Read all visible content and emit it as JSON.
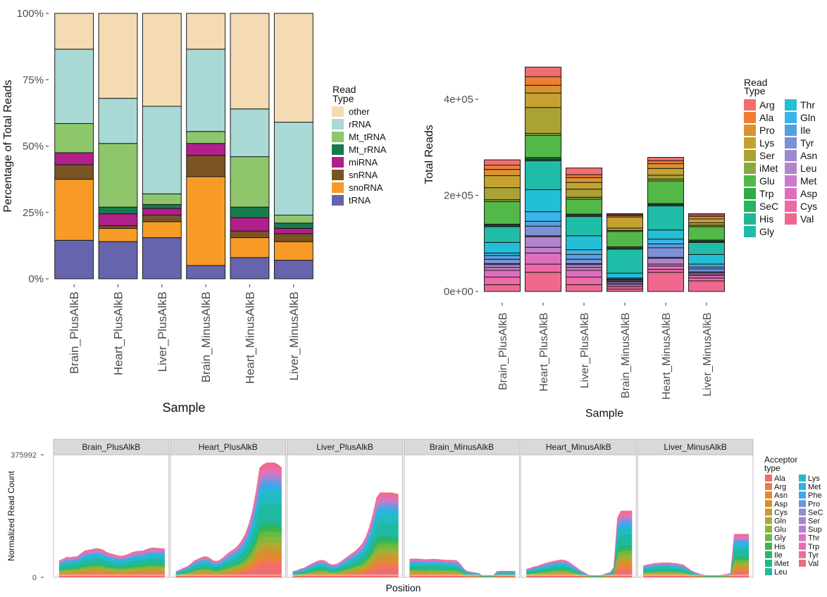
{
  "chart_data": [
    {
      "type": "bar",
      "stacked": true,
      "xlabel": "Sample",
      "ylabel": "Percentage of Total Reads",
      "ylim": [
        0,
        100
      ],
      "yticks": [
        "0%",
        "25%",
        "50%",
        "75%",
        "100%"
      ],
      "categories": [
        "Brain_PlusAlkB",
        "Heart_PlusAlkB",
        "Liver_PlusAlkB",
        "Brain_MinusAlkB",
        "Heart_MinusAlkB",
        "Liver_MinusAlkB"
      ],
      "legend_title": "Read Type",
      "legend_position": "right",
      "series": [
        {
          "name": "tRNA",
          "color": "#6664ac",
          "values": [
            14.5,
            14.0,
            15.5,
            5.0,
            8.0,
            7.0
          ]
        },
        {
          "name": "snoRNA",
          "color": "#f89b26",
          "values": [
            23.0,
            5.0,
            6.0,
            33.5,
            7.5,
            7.0
          ]
        },
        {
          "name": "snRNA",
          "color": "#7a5423",
          "values": [
            5.5,
            1.0,
            2.5,
            8.0,
            2.5,
            3.0
          ]
        },
        {
          "name": "miRNA",
          "color": "#b11f8a",
          "values": [
            4.5,
            4.5,
            2.5,
            4.5,
            5.0,
            2.0
          ]
        },
        {
          "name": "Mt_rRNA",
          "color": "#177a4d",
          "values": [
            0.0,
            2.5,
            1.5,
            0.0,
            4.0,
            2.0
          ]
        },
        {
          "name": "Mt_tRNA",
          "color": "#8ec66c",
          "values": [
            11.0,
            24.0,
            4.0,
            4.5,
            19.0,
            3.0
          ]
        },
        {
          "name": "rRNA",
          "color": "#a8d9d5",
          "values": [
            28.0,
            17.0,
            33.0,
            31.0,
            18.0,
            35.0
          ]
        },
        {
          "name": "other",
          "color": "#f4dbb3",
          "values": [
            13.5,
            32.0,
            35.0,
            13.5,
            36.0,
            41.0
          ]
        }
      ]
    },
    {
      "type": "bar",
      "stacked": true,
      "xlabel": "Sample",
      "ylabel": "Total Reads",
      "ylim": [
        0,
        570000
      ],
      "yticks": [
        {
          "value": 0,
          "label": "0e+00"
        },
        {
          "value": 200000,
          "label": "2e+05"
        },
        {
          "value": 400000,
          "label": "4e+05"
        }
      ],
      "categories": [
        "Brain_PlusAlkB",
        "Heart_PlusAlkB",
        "Liver_PlusAlkB",
        "Brain_MinusAlkB",
        "Heart_MinusAlkB",
        "Liver_MinusAlkB"
      ],
      "legend_title": "Read Type",
      "legend_position": "right",
      "series": [
        {
          "name": "Val",
          "color": "#f0688e",
          "values": [
            14000,
            40000,
            14000,
            5000,
            40000,
            22000
          ]
        },
        {
          "name": "Cys",
          "color": "#ee6aa6",
          "values": [
            16000,
            17000,
            16000,
            5000,
            6000,
            6000
          ]
        },
        {
          "name": "Asp",
          "color": "#de6fbd",
          "values": [
            14000,
            23000,
            14000,
            4000,
            7000,
            5000
          ]
        },
        {
          "name": "Met",
          "color": "#c87ccb",
          "values": [
            6000,
            12000,
            6000,
            3000,
            4000,
            3000
          ]
        },
        {
          "name": "Leu",
          "color": "#b184cc",
          "values": [
            6000,
            22000,
            6000,
            3000,
            12000,
            3000
          ]
        },
        {
          "name": "Asn",
          "color": "#9a8ace",
          "values": [
            2000,
            2000,
            2000,
            2000,
            2000,
            2000
          ]
        },
        {
          "name": "Tyr",
          "color": "#7d92d6",
          "values": [
            9000,
            20000,
            9000,
            2000,
            20000,
            6000
          ]
        },
        {
          "name": "Ile",
          "color": "#54a0e0",
          "values": [
            8000,
            10000,
            10000,
            2000,
            8000,
            4000
          ]
        },
        {
          "name": "Gln",
          "color": "#3ab3e8",
          "values": [
            5000,
            20000,
            10000,
            2000,
            10000,
            6000
          ]
        },
        {
          "name": "Thr",
          "color": "#23bfd6",
          "values": [
            22000,
            46000,
            29000,
            10000,
            19000,
            20000
          ]
        },
        {
          "name": "Gly",
          "color": "#1fbda8",
          "values": [
            33000,
            60000,
            40000,
            50000,
            50000,
            25000
          ]
        },
        {
          "name": "His",
          "color": "#21b793",
          "values": [
            1000,
            2000,
            1000,
            1000,
            1000,
            1000
          ]
        },
        {
          "name": "SeC",
          "color": "#27b55f",
          "values": [
            2000,
            2000,
            2000,
            2000,
            2000,
            2000
          ]
        },
        {
          "name": "Trp",
          "color": "#30ab45",
          "values": [
            2000,
            3000,
            2000,
            2000,
            2000,
            2000
          ]
        },
        {
          "name": "Glu",
          "color": "#52b848",
          "values": [
            47000,
            46000,
            31000,
            32000,
            47000,
            28000
          ]
        },
        {
          "name": "iMet",
          "color": "#8aa93c",
          "values": [
            4000,
            4000,
            4000,
            2000,
            4000,
            3000
          ]
        },
        {
          "name": "Ser",
          "color": "#aaa235",
          "values": [
            25000,
            54000,
            17000,
            5000,
            8000,
            5000
          ]
        },
        {
          "name": "Lys",
          "color": "#c5a22f",
          "values": [
            25000,
            30000,
            14000,
            23000,
            14000,
            8000
          ]
        },
        {
          "name": "Pro",
          "color": "#d9932f",
          "values": [
            13000,
            16000,
            10000,
            3000,
            10000,
            5000
          ]
        },
        {
          "name": "Ala",
          "color": "#ef7e34",
          "values": [
            9000,
            18000,
            6000,
            2000,
            6000,
            3000
          ]
        },
        {
          "name": "Arg",
          "color": "#f26d6d",
          "values": [
            11000,
            20000,
            14000,
            2000,
            7000,
            3000
          ]
        }
      ]
    },
    {
      "type": "area",
      "stacked": true,
      "faceted": true,
      "xlabel": "Position",
      "ylabel": "Normalized Read Count",
      "ylim": [
        0,
        375992
      ],
      "yticks": [
        {
          "value": 0,
          "label": "0"
        },
        {
          "value": 375992,
          "label": "375992"
        }
      ],
      "panels": [
        "Brain_PlusAlkB",
        "Heart_PlusAlkB",
        "Liver_PlusAlkB",
        "Brain_MinusAlkB",
        "Heart_MinusAlkB",
        "Liver_MinusAlkB"
      ],
      "panel_totals": [
        [
          50000,
          55000,
          61000,
          60000,
          62000,
          63000,
          72000,
          80000,
          82000,
          84000,
          87000,
          86000,
          83000,
          76000,
          72000,
          69000,
          66000,
          64000,
          66000,
          70000,
          75000,
          78000,
          79000,
          80000,
          84000,
          88000,
          89000,
          88000,
          87000,
          86000
        ],
        [
          18000,
          22000,
          28000,
          32000,
          40000,
          50000,
          55000,
          60000,
          63000,
          60000,
          52000,
          48000,
          52000,
          60000,
          70000,
          78000,
          85000,
          95000,
          110000,
          130000,
          160000,
          200000,
          260000,
          330000,
          340000,
          345000,
          345000,
          345000,
          340000,
          330000
        ],
        [
          18000,
          20000,
          25000,
          28000,
          34000,
          40000,
          45000,
          50000,
          52000,
          49000,
          41000,
          38000,
          40000,
          46000,
          54000,
          62000,
          70000,
          78000,
          88000,
          100000,
          120000,
          150000,
          190000,
          240000,
          255000,
          255000,
          255000,
          255000,
          253000,
          250000
        ],
        [
          55000,
          56000,
          56000,
          55000,
          54000,
          54000,
          55000,
          55000,
          54000,
          53000,
          52000,
          52000,
          52000,
          50000,
          40000,
          25000,
          18000,
          16000,
          14000,
          12000,
          6000,
          5000,
          6000,
          6000,
          18000,
          19000,
          19000,
          19000,
          19000,
          18000
        ],
        [
          25000,
          28000,
          32000,
          34000,
          38000,
          42000,
          45000,
          48000,
          50000,
          52000,
          53000,
          50000,
          44000,
          36000,
          28000,
          20000,
          14000,
          8000,
          6000,
          5000,
          6000,
          8000,
          12000,
          15000,
          30000,
          180000,
          200000,
          200000,
          200000,
          200000
        ],
        [
          35000,
          38000,
          40000,
          42000,
          43000,
          44000,
          44000,
          44000,
          43000,
          42000,
          40000,
          38000,
          30000,
          22000,
          16000,
          12000,
          9000,
          7000,
          6000,
          6000,
          6000,
          7000,
          8000,
          10000,
          12000,
          130000,
          130000,
          130000,
          130000,
          130000
        ]
      ],
      "legend_title": "Acceptor type",
      "legend_position": "right",
      "series": [
        {
          "name": "Ala",
          "color": "#f26d6d",
          "share": 0.12
        },
        {
          "name": "Arg",
          "color": "#ef7a45",
          "share": 0.04
        },
        {
          "name": "Asn",
          "color": "#e68537",
          "share": 0.03
        },
        {
          "name": "Asp",
          "color": "#d6902e",
          "share": 0.05
        },
        {
          "name": "Cys",
          "color": "#c59c2d",
          "share": 0.03
        },
        {
          "name": "Gln",
          "color": "#acaa32",
          "share": 0.04
        },
        {
          "name": "Glu",
          "color": "#8eb43a",
          "share": 0.05
        },
        {
          "name": "Gly",
          "color": "#64bb42",
          "share": 0.05
        },
        {
          "name": "His",
          "color": "#3fb44b",
          "share": 0.03
        },
        {
          "name": "Ile",
          "color": "#2cb467",
          "share": 0.03
        },
        {
          "name": "iMet",
          "color": "#22b684",
          "share": 0.03
        },
        {
          "name": "Leu",
          "color": "#1fb9a0",
          "share": 0.16
        },
        {
          "name": "Lys",
          "color": "#22bbc4",
          "share": 0.11
        },
        {
          "name": "Met",
          "color": "#2ab3e2",
          "share": 0.04
        },
        {
          "name": "Phe",
          "color": "#41a6e8",
          "share": 0.03
        },
        {
          "name": "Pro",
          "color": "#6a97dc",
          "share": 0.03
        },
        {
          "name": "SeC",
          "color": "#8a8ed6",
          "share": 0.01
        },
        {
          "name": "Ser",
          "color": "#a586d0",
          "share": 0.03
        },
        {
          "name": "Sup",
          "color": "#bd7ecb",
          "share": 0.01
        },
        {
          "name": "Thr",
          "color": "#d673c4",
          "share": 0.03
        },
        {
          "name": "Trp",
          "color": "#e66db3",
          "share": 0.02
        },
        {
          "name": "Tyr",
          "color": "#ee6a9e",
          "share": 0.02
        },
        {
          "name": "Val",
          "color": "#f06a87",
          "share": 0.03
        }
      ]
    }
  ]
}
